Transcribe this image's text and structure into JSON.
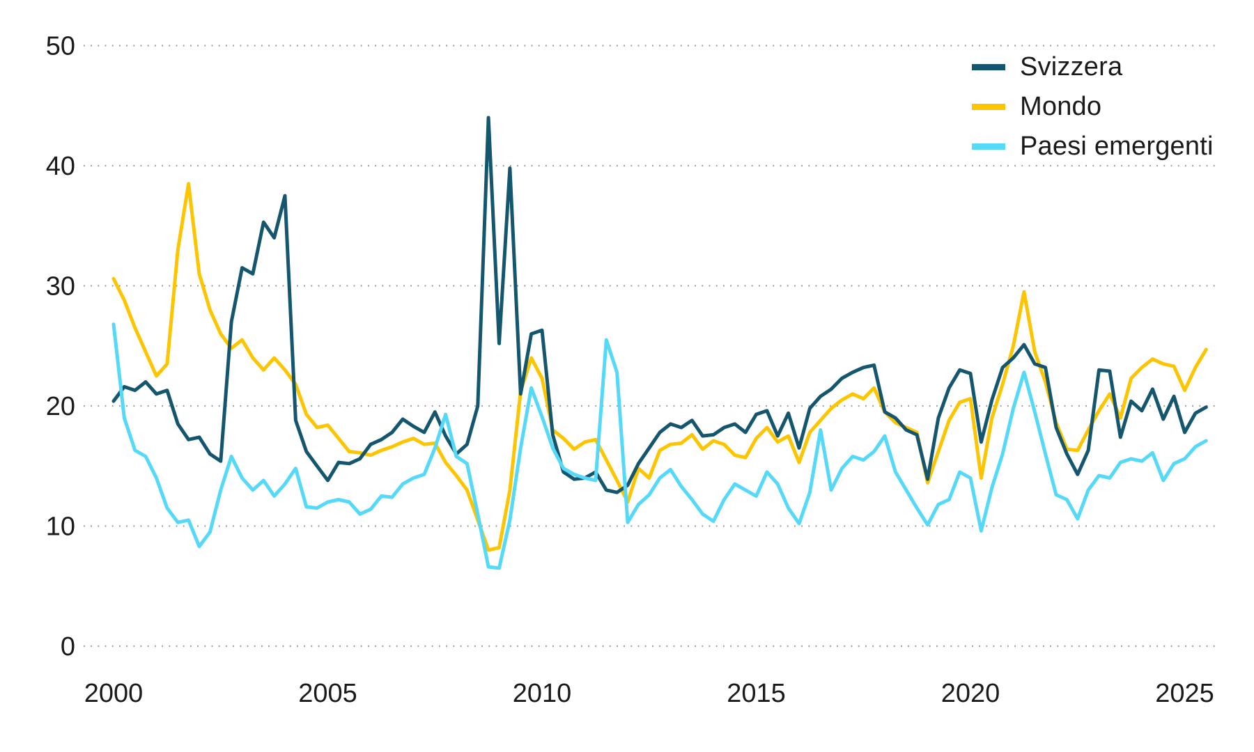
{
  "page": {
    "background": "#ffffff",
    "text_color": "#1a1a1a",
    "grid_color": "#9b9b9b"
  },
  "chart_data": {
    "type": "line",
    "title": "",
    "xlabel": "",
    "ylabel": "",
    "x_axis": {
      "ticks": [
        2000,
        2005,
        2010,
        2015,
        2020,
        2025
      ],
      "range": [
        1999.6,
        2026.3
      ]
    },
    "y_axis": {
      "ticks": [
        0,
        10,
        20,
        30,
        40,
        50
      ],
      "range": [
        0,
        50
      ],
      "grid": "dotted horizontal"
    },
    "legend": {
      "position": "top-right",
      "entries": [
        "Svizzera",
        "Mondo",
        "Paesi emergenti"
      ]
    },
    "x_start": 2000,
    "x_step": 0.25,
    "series": [
      {
        "name": "Svizzera",
        "color": "#14566e",
        "values": [
          20.4,
          21.6,
          21.3,
          22.0,
          21.0,
          21.3,
          18.5,
          17.2,
          17.4,
          16.0,
          15.4,
          27.0,
          31.5,
          31.0,
          35.3,
          34.0,
          37.5,
          18.8,
          16.2,
          15.0,
          13.8,
          15.3,
          15.2,
          15.6,
          16.8,
          17.2,
          17.8,
          18.9,
          18.3,
          17.8,
          19.5,
          17.5,
          16.0,
          16.8,
          20.0,
          44.0,
          25.2,
          39.8,
          21.0,
          26.0,
          26.3,
          17.6,
          14.5,
          13.9,
          14.0,
          14.5,
          13.0,
          12.8,
          13.4,
          15.2,
          16.5,
          17.8,
          18.5,
          18.2,
          18.8,
          17.5,
          17.6,
          18.2,
          18.5,
          17.8,
          19.3,
          19.6,
          17.5,
          19.4,
          16.5,
          19.8,
          20.8,
          21.4,
          22.3,
          22.8,
          23.2,
          23.4,
          19.5,
          19.0,
          18.0,
          17.6,
          13.9,
          19.0,
          21.5,
          23.0,
          22.7,
          17.0,
          20.5,
          23.2,
          24.0,
          25.1,
          23.5,
          23.2,
          18.2,
          16.0,
          14.3,
          16.3,
          23.0,
          22.9,
          17.4,
          20.4,
          19.6,
          21.4,
          18.9,
          20.8,
          17.8,
          19.4,
          19.9
        ]
      },
      {
        "name": "Mondo",
        "color": "#fdc500",
        "values": [
          30.6,
          28.8,
          26.5,
          24.5,
          22.5,
          23.5,
          33.0,
          38.5,
          31.0,
          28.0,
          26.0,
          24.8,
          25.5,
          24.0,
          23.0,
          24.0,
          23.0,
          21.8,
          19.3,
          18.2,
          18.4,
          17.3,
          16.2,
          16.1,
          15.9,
          16.3,
          16.6,
          17.0,
          17.3,
          16.8,
          16.9,
          15.3,
          14.2,
          13.0,
          10.5,
          8.0,
          8.2,
          13.0,
          21.2,
          24.0,
          22.3,
          18.0,
          17.3,
          16.4,
          17.0,
          17.2,
          15.5,
          13.8,
          12.0,
          14.8,
          14.0,
          16.3,
          16.8,
          16.9,
          17.6,
          16.4,
          17.1,
          16.8,
          15.9,
          15.7,
          17.3,
          18.2,
          17.0,
          17.5,
          15.3,
          17.8,
          18.8,
          19.8,
          20.5,
          21.0,
          20.6,
          21.5,
          19.5,
          18.6,
          18.2,
          17.8,
          13.6,
          16.2,
          18.8,
          20.3,
          20.6,
          14.0,
          19.0,
          21.8,
          25.0,
          29.5,
          24.5,
          22.0,
          18.6,
          16.4,
          16.3,
          18.0,
          19.6,
          21.0,
          19.0,
          22.3,
          23.2,
          23.9,
          23.5,
          23.3,
          21.3,
          23.2,
          24.7
        ]
      },
      {
        "name": "Paesi emergenti",
        "color": "#55d9f8",
        "values": [
          26.8,
          19.0,
          16.3,
          15.8,
          14.0,
          11.5,
          10.3,
          10.5,
          8.3,
          9.5,
          13.0,
          15.8,
          14.0,
          13.0,
          13.8,
          12.5,
          13.5,
          14.8,
          11.6,
          11.5,
          12.0,
          12.2,
          12.0,
          11.0,
          11.4,
          12.5,
          12.4,
          13.5,
          14.0,
          14.3,
          16.5,
          19.3,
          15.8,
          15.2,
          11.0,
          6.6,
          6.5,
          10.5,
          16.5,
          21.5,
          19.1,
          16.5,
          14.8,
          14.3,
          14.0,
          13.8,
          25.5,
          22.8,
          10.3,
          11.8,
          12.6,
          14.0,
          14.7,
          13.3,
          12.2,
          11.0,
          10.4,
          12.2,
          13.5,
          13.0,
          12.5,
          14.5,
          13.5,
          11.5,
          10.2,
          12.8,
          18.0,
          13.0,
          14.8,
          15.8,
          15.5,
          16.2,
          17.5,
          14.5,
          13.0,
          11.5,
          10.1,
          11.8,
          12.2,
          14.5,
          14.0,
          9.6,
          13.2,
          16.0,
          19.8,
          22.8,
          19.5,
          16.0,
          12.6,
          12.2,
          10.6,
          13.0,
          14.2,
          14.0,
          15.3,
          15.6,
          15.4,
          16.1,
          13.8,
          15.2,
          15.6,
          16.6,
          17.1
        ]
      }
    ]
  }
}
